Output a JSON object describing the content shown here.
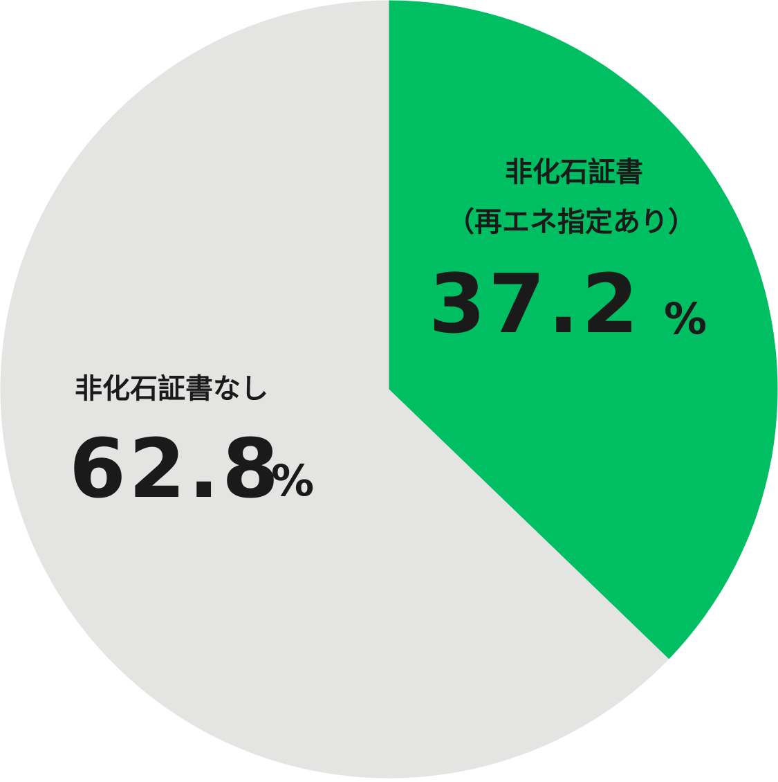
{
  "chart_data": {
    "type": "pie",
    "start_angle_deg": 0,
    "direction": "clockwise",
    "slices": [
      {
        "label_lines": [
          "非化石証書",
          "（再エネ指定あり）"
        ],
        "value": 37.2,
        "value_text": "37.2",
        "unit": "%",
        "color": "#00be62"
      },
      {
        "label_lines": [
          "非化石証書なし"
        ],
        "value": 62.8,
        "value_text": "62.8",
        "unit": "%",
        "color": "#e4e4e2"
      }
    ],
    "text_color": "#1a1a1a"
  }
}
